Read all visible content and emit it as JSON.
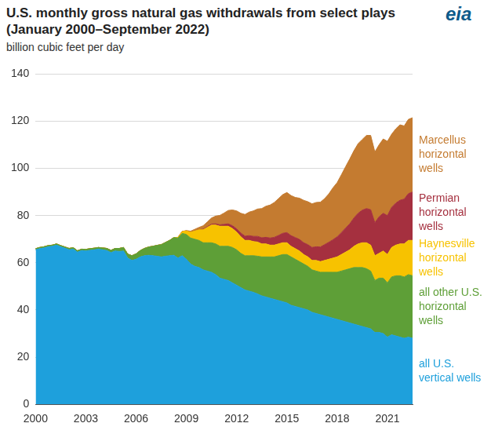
{
  "chart_data": {
    "type": "area",
    "title": "U.S. monthly gross natural gas withdrawals from select plays (January 2000–September 2022)",
    "subtitle": "billion cubic feet per day",
    "logo": "eia",
    "stacked": true,
    "grid": true,
    "ylim": [
      0,
      140
    ],
    "yticks": [
      0,
      20,
      40,
      60,
      80,
      100,
      120,
      140
    ],
    "categories": [
      "2000",
      null,
      null,
      null,
      null,
      null,
      null,
      null,
      null,
      null,
      null,
      null,
      "2003",
      null,
      null,
      null,
      null,
      null,
      null,
      null,
      null,
      null,
      null,
      null,
      "2006",
      null,
      null,
      null,
      null,
      null,
      null,
      null,
      null,
      null,
      null,
      null,
      "2009",
      null,
      null,
      null,
      null,
      null,
      null,
      null,
      null,
      null,
      null,
      null,
      "2012",
      null,
      null,
      null,
      null,
      null,
      null,
      null,
      null,
      null,
      null,
      null,
      "2015",
      null,
      null,
      null,
      null,
      null,
      null,
      null,
      null,
      null,
      null,
      null,
      "2018",
      null,
      null,
      null,
      null,
      null,
      null,
      null,
      null,
      null,
      null,
      null,
      "2021",
      null,
      null,
      null,
      null,
      null,
      null
    ],
    "series": [
      {
        "name": "all U.S. vertical wells",
        "color": "#1ea0dc",
        "values": [
          65.5,
          66.0,
          66.3,
          66.8,
          67.0,
          67.5,
          66.8,
          66.2,
          65.5,
          65.8,
          64.5,
          65.2,
          65.0,
          65.3,
          65.5,
          65.8,
          65.5,
          65.2,
          64.3,
          65.0,
          64.8,
          65.0,
          62.0,
          61.0,
          61.5,
          62.5,
          63.0,
          63.2,
          63.0,
          62.8,
          62.5,
          62.8,
          63.0,
          63.2,
          62.0,
          63.0,
          61.5,
          59.5,
          58.5,
          58.0,
          57.0,
          56.5,
          56.0,
          55.0,
          53.5,
          53.0,
          52.5,
          51.5,
          50.5,
          49.5,
          48.5,
          48.0,
          47.5,
          46.8,
          46.0,
          45.5,
          45.0,
          44.5,
          44.0,
          43.5,
          43.0,
          42.0,
          41.5,
          41.0,
          40.5,
          40.0,
          39.0,
          38.5,
          38.0,
          37.5,
          37.0,
          36.5,
          36.0,
          35.5,
          35.0,
          34.5,
          34.0,
          33.5,
          33.0,
          32.5,
          32.0,
          30.5,
          30.5,
          30.0,
          28.5,
          29.5,
          29.0,
          28.5,
          28.0,
          28.5,
          28.0
        ]
      },
      {
        "name": "all other U.S. horizontal wells",
        "color": "#5e9f37",
        "values": [
          0.5,
          0.5,
          0.5,
          0.5,
          0.5,
          0.5,
          0.5,
          0.5,
          0.6,
          0.6,
          0.6,
          0.6,
          0.7,
          0.7,
          0.7,
          0.7,
          0.8,
          0.9,
          1.0,
          1.1,
          1.3,
          1.5,
          1.7,
          2.0,
          2.3,
          2.7,
          3.1,
          3.5,
          4.0,
          4.6,
          5.2,
          5.8,
          6.5,
          7.5,
          8.5,
          9.5,
          10.5,
          11.0,
          11.5,
          11.5,
          11.5,
          12.0,
          12.5,
          13.0,
          13.5,
          14.0,
          14.5,
          15.0,
          15.0,
          14.5,
          14.5,
          15.0,
          15.5,
          16.0,
          16.5,
          17.0,
          17.5,
          18.0,
          19.0,
          20.0,
          20.5,
          20.5,
          20.0,
          19.5,
          19.0,
          18.5,
          18.0,
          18.0,
          18.0,
          18.5,
          19.0,
          19.5,
          20.0,
          21.0,
          22.0,
          23.0,
          24.0,
          24.5,
          25.0,
          25.0,
          24.5,
          22.0,
          23.0,
          23.5,
          23.0,
          24.5,
          25.5,
          26.0,
          26.0,
          26.5,
          26.5
        ]
      },
      {
        "name": "Haynesville horizontal wells",
        "color": "#f7c200",
        "values": [
          0,
          0,
          0,
          0,
          0,
          0,
          0,
          0,
          0,
          0,
          0,
          0,
          0,
          0,
          0,
          0,
          0,
          0,
          0,
          0,
          0,
          0,
          0,
          0,
          0,
          0,
          0,
          0,
          0,
          0,
          0,
          0,
          0,
          0,
          0.3,
          0.8,
          1.5,
          2.5,
          3.5,
          4.5,
          5.5,
          6.5,
          7.5,
          8.0,
          8.5,
          8.5,
          8.5,
          8.0,
          7.5,
          7.0,
          6.5,
          6.5,
          6.0,
          6.0,
          5.5,
          5.5,
          5.0,
          5.0,
          5.0,
          5.0,
          5.0,
          4.5,
          4.5,
          4.5,
          4.0,
          4.0,
          4.0,
          4.5,
          4.5,
          5.0,
          5.5,
          6.0,
          6.5,
          7.0,
          7.5,
          8.0,
          9.0,
          10.0,
          10.5,
          11.0,
          11.0,
          10.5,
          10.5,
          11.5,
          12.0,
          12.5,
          13.0,
          13.5,
          14.0,
          14.5,
          15.0
        ]
      },
      {
        "name": "Permian horizontal wells",
        "color": "#a5303f",
        "values": [
          0,
          0,
          0,
          0,
          0,
          0,
          0,
          0,
          0,
          0,
          0,
          0,
          0,
          0,
          0,
          0,
          0,
          0,
          0,
          0,
          0,
          0,
          0,
          0,
          0,
          0,
          0,
          0,
          0,
          0,
          0,
          0,
          0,
          0,
          0,
          0,
          0,
          0,
          0,
          0,
          0.2,
          0.3,
          0.4,
          0.5,
          0.6,
          0.8,
          1.0,
          1.2,
          1.4,
          1.6,
          1.8,
          2.0,
          2.2,
          2.4,
          2.6,
          2.8,
          3.0,
          3.3,
          3.6,
          4.0,
          4.3,
          4.5,
          4.7,
          4.9,
          5.0,
          5.2,
          5.5,
          5.8,
          6.2,
          6.7,
          7.2,
          7.8,
          8.5,
          9.3,
          10.2,
          11.0,
          12.0,
          13.0,
          13.8,
          14.5,
          15.0,
          14.0,
          15.5,
          16.0,
          16.5,
          17.0,
          17.8,
          18.5,
          19.0,
          19.8,
          20.5
        ]
      },
      {
        "name": "Marcellus horizontal wells",
        "color": "#c47b30",
        "values": [
          0,
          0,
          0,
          0,
          0,
          0,
          0,
          0,
          0,
          0,
          0,
          0,
          0,
          0,
          0,
          0,
          0,
          0,
          0,
          0,
          0,
          0,
          0,
          0,
          0,
          0,
          0,
          0,
          0,
          0,
          0,
          0,
          0,
          0,
          0,
          0,
          0.2,
          0.4,
          0.7,
          1.0,
          1.5,
          2.0,
          2.6,
          3.3,
          4.0,
          4.8,
          5.7,
          6.7,
          7.6,
          8.4,
          9.2,
          10.0,
          10.8,
          11.6,
          12.4,
          13.2,
          14.0,
          14.8,
          15.6,
          16.4,
          17.0,
          17.0,
          17.0,
          17.5,
          18.0,
          18.2,
          18.5,
          18.8,
          19.0,
          19.5,
          20.5,
          22.0,
          23.0,
          24.5,
          26.0,
          27.5,
          28.5,
          29.5,
          30.0,
          31.0,
          31.5,
          30.0,
          30.5,
          31.5,
          31.5,
          31.0,
          31.5,
          32.0,
          31.0,
          31.5,
          31.5
        ]
      }
    ]
  }
}
